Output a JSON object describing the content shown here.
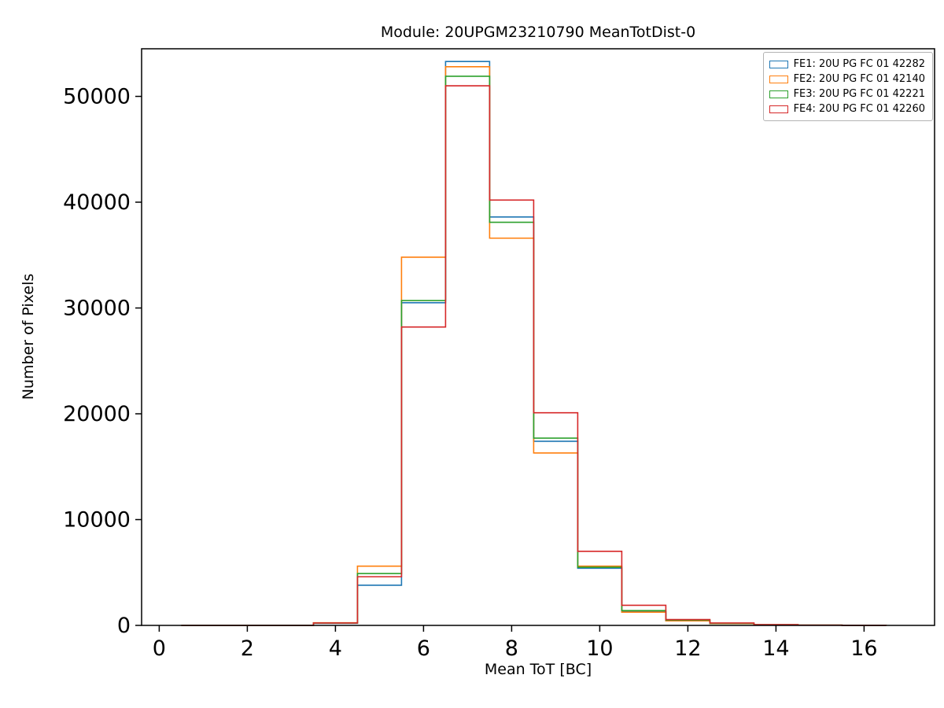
{
  "figure": {
    "background": "#ffffff"
  },
  "chart_data": {
    "type": "step-histogram",
    "title": "Module: 20UPGM23210790 MeanTotDist-0",
    "xlabel": "Mean ToT [BC]",
    "ylabel": "Number of Pixels",
    "xlim": [
      -0.4,
      17.6
    ],
    "ylim": [
      0,
      54500
    ],
    "xticks": [
      0,
      2,
      4,
      6,
      8,
      10,
      12,
      14,
      16
    ],
    "yticks": [
      0,
      10000,
      20000,
      30000,
      40000,
      50000
    ],
    "bin_edges": [
      0.5,
      1.5,
      2.5,
      3.5,
      4.5,
      5.5,
      6.5,
      7.5,
      8.5,
      9.5,
      10.5,
      11.5,
      12.5,
      13.5,
      14.5,
      15.5,
      16.5
    ],
    "grid": false,
    "legend_position": "upper right",
    "series": [
      {
        "name": "FE1: 20U PG FC 01 42282",
        "color": "#1f77b4",
        "values": [
          0,
          0,
          0,
          200,
          3800,
          30500,
          53300,
          38600,
          17400,
          5400,
          1300,
          450,
          180,
          60,
          20,
          5
        ]
      },
      {
        "name": "FE2: 20U PG FC 01 42140",
        "color": "#ff7f0e",
        "values": [
          0,
          0,
          0,
          250,
          5600,
          34800,
          52800,
          36600,
          16300,
          5600,
          1250,
          430,
          170,
          60,
          20,
          5
        ]
      },
      {
        "name": "FE3: 20U PG FC 01 42221",
        "color": "#2ca02c",
        "values": [
          0,
          0,
          0,
          220,
          4900,
          30700,
          51900,
          38100,
          17700,
          5500,
          1400,
          500,
          190,
          60,
          20,
          5
        ]
      },
      {
        "name": "FE4: 20U PG FC 01 42260",
        "color": "#d62728",
        "values": [
          0,
          0,
          0,
          230,
          4600,
          28200,
          51000,
          40200,
          20100,
          7000,
          1900,
          550,
          230,
          70,
          20,
          5
        ]
      }
    ]
  }
}
